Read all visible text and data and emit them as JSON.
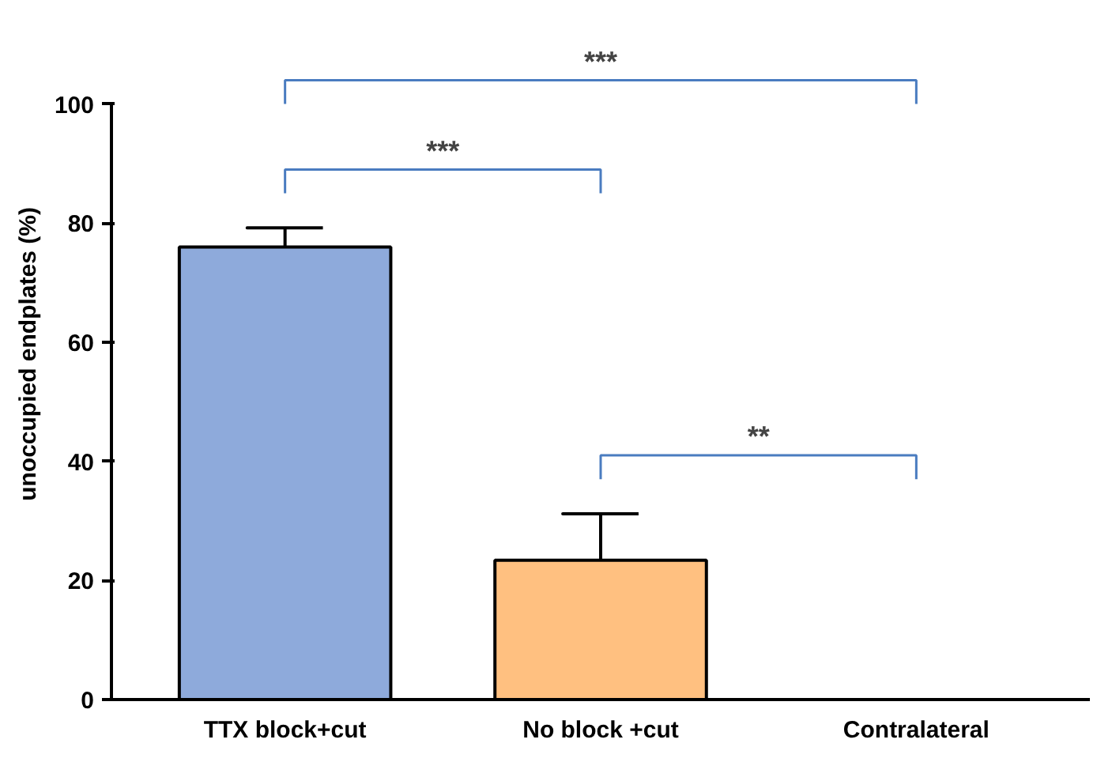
{
  "chart_data": {
    "type": "bar",
    "ylabel": "unoccupied endplates (%)",
    "categories": [
      "TTX block+cut",
      "No block +cut",
      "Contralateral"
    ],
    "values": [
      76,
      23.4,
      0
    ],
    "colors": [
      "#8eaadb",
      "#ffc080",
      "#000000"
    ],
    "errors": [
      [
        76,
        79.2
      ],
      [
        23.4,
        31.2
      ],
      null
    ],
    "ylim": [
      0,
      100
    ],
    "yticks": [
      0,
      20,
      40,
      60,
      80,
      100
    ],
    "grid": false,
    "annotations": [
      "***",
      "***",
      "**"
    ]
  }
}
